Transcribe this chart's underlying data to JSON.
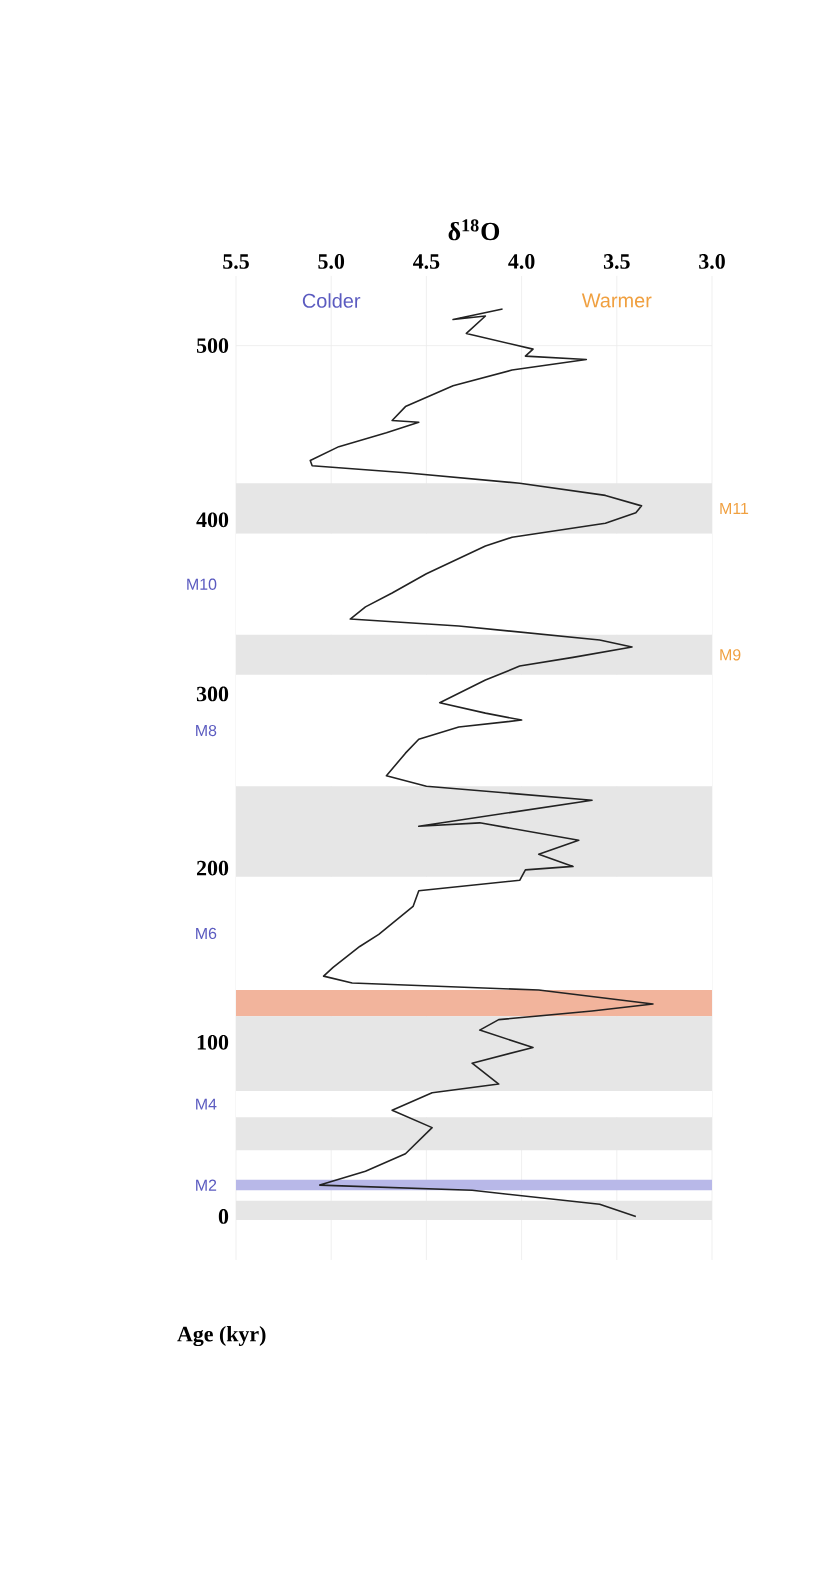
{
  "chart_data": {
    "type": "line",
    "xlabel": "δ$^{18}$O",
    "ylabel": "Age (kyr)",
    "xlim": [
      5.5,
      3.0
    ],
    "ylim": [
      -25,
      540
    ],
    "xticks": [
      {
        "value": 5.5,
        "label": "5.5"
      },
      {
        "value": 5,
        "label": "5.0"
      },
      {
        "value": 4.5,
        "label": "4.5"
      },
      {
        "value": 4,
        "label": "4.0"
      },
      {
        "value": 3.5,
        "label": "3.5"
      },
      {
        "value": 3,
        "label": "3.0"
      }
    ],
    "yticks": [
      0,
      100,
      200,
      300,
      400,
      500
    ],
    "grid": true,
    "series": [
      {
        "color": "#222222",
        "x": [
          4.1,
          4.36,
          4.19,
          4.29,
          3.94,
          3.98,
          3.66,
          4.05,
          4.36,
          4.61,
          4.68,
          4.54,
          4.71,
          4.96,
          5.11,
          5.1,
          4.61,
          4.01,
          3.56,
          3.37,
          3.4,
          3.56,
          4.05,
          4.19,
          4.5,
          4.68,
          4.82,
          4.9,
          4.33,
          3.59,
          3.42,
          3.73,
          4.01,
          4.19,
          4.43,
          4.19,
          4.0,
          4.33,
          4.54,
          4.61,
          4.71,
          4.5,
          3.63,
          4.54,
          4.22,
          3.7,
          3.91,
          3.73,
          3.98,
          4.01,
          4.54,
          4.57,
          4.75,
          4.85,
          4.99,
          5.04,
          4.89,
          3.91,
          3.31,
          3.63,
          4.12,
          4.22,
          3.94,
          4.26,
          4.12,
          4.47,
          4.68,
          4.47,
          4.61,
          4.82,
          5.06,
          4.26,
          3.59,
          3.4
        ],
        "values": [
          521,
          515,
          517,
          507,
          498,
          494,
          492,
          486,
          477,
          465,
          457,
          456,
          450,
          442,
          434,
          431,
          427,
          421,
          414,
          408,
          404,
          398,
          390,
          385,
          369,
          358,
          350,
          343,
          339,
          331,
          327,
          321,
          316,
          308,
          295,
          289,
          285,
          281,
          274,
          266,
          253,
          247,
          239,
          224,
          226,
          216,
          208,
          201,
          199,
          193,
          187,
          178,
          162,
          155,
          143,
          138,
          134,
          130,
          122,
          118,
          113,
          107,
          97,
          88,
          76,
          71,
          61,
          51,
          36,
          26,
          18,
          15,
          7,
          0
        ]
      }
    ],
    "bands": [
      {
        "axis": "y",
        "from": 392,
        "to": 421,
        "color": "#e6e6e6",
        "label": "M11"
      },
      {
        "axis": "y",
        "from": 334,
        "to": 392,
        "color": "#ffffff",
        "label": "M10"
      },
      {
        "axis": "y",
        "from": 247,
        "to": 311,
        "color": "#ffffff",
        "label": "M8"
      },
      {
        "axis": "y",
        "from": 130,
        "to": 195,
        "color": "#ffffff",
        "label": "M6"
      },
      {
        "axis": "y",
        "from": 57,
        "to": 72,
        "color": "#ffffff",
        "label": "M4"
      },
      {
        "axis": "y",
        "from": 311,
        "to": 334,
        "color": "#e6e6e6",
        "label": "M9"
      },
      {
        "axis": "y",
        "from": 195,
        "to": 247,
        "color": "#e6e6e6"
      },
      {
        "axis": "y",
        "from": 115,
        "to": 130,
        "color": "#f2b49c"
      },
      {
        "axis": "y",
        "from": 72,
        "to": 115,
        "color": "#e6e6e6"
      },
      {
        "axis": "y",
        "from": 38,
        "to": 57,
        "color": "#e6e6e6"
      },
      {
        "axis": "y",
        "from": 15,
        "to": 21,
        "color": "#b8b8e8",
        "label": "M2"
      },
      {
        "axis": "y",
        "from": -2,
        "to": 9,
        "color": "#e6e6e6"
      }
    ],
    "annotations": [
      "Colder",
      "Warmer"
    ]
  }
}
